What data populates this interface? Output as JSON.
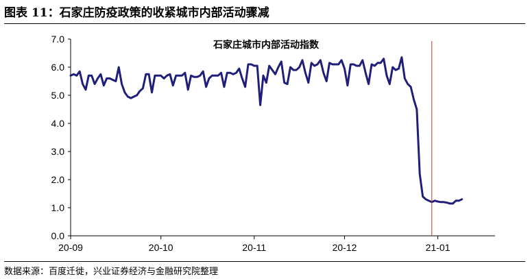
{
  "figure": {
    "title": "图表 11：石家庄防疫政策的收紧城市内部活动骤减",
    "source": "数据来源：百度迁徙，兴业证券经济与金融研究院整理"
  },
  "chart_data": {
    "type": "line",
    "title": "石家庄城市内部活动指数",
    "xlabel": "",
    "ylabel": "",
    "ylim": [
      0,
      7
    ],
    "yticks": [
      "0.0",
      "1.0",
      "2.0",
      "3.0",
      "4.0",
      "5.0",
      "6.0",
      "7.0"
    ],
    "xticks": [
      {
        "label": "20-09",
        "date": "2020-09-01"
      },
      {
        "label": "20-10",
        "date": "2020-10-01"
      },
      {
        "label": "20-11",
        "date": "2020-11-01"
      },
      {
        "label": "20-12",
        "date": "2020-12-01"
      },
      {
        "label": "21-01",
        "date": "2021-01-01"
      }
    ],
    "x_range": [
      "2020-09-01",
      "2021-01-20"
    ],
    "line_color": "#1f1f7a",
    "vline": {
      "date": "2020-12-30",
      "color": "#c0392b"
    },
    "grid": false,
    "series": [
      {
        "values": [
          [
            "2020-09-01",
            5.7
          ],
          [
            "2020-09-02",
            5.75
          ],
          [
            "2020-09-03",
            5.7
          ],
          [
            "2020-09-04",
            5.85
          ],
          [
            "2020-09-05",
            5.4
          ],
          [
            "2020-09-06",
            5.2
          ],
          [
            "2020-09-07",
            5.7
          ],
          [
            "2020-09-08",
            5.7
          ],
          [
            "2020-09-09",
            5.4
          ],
          [
            "2020-09-10",
            5.6
          ],
          [
            "2020-09-11",
            5.75
          ],
          [
            "2020-09-12",
            5.35
          ],
          [
            "2020-09-13",
            5.6
          ],
          [
            "2020-09-14",
            5.6
          ],
          [
            "2020-09-15",
            5.55
          ],
          [
            "2020-09-16",
            5.5
          ],
          [
            "2020-09-17",
            6.0
          ],
          [
            "2020-09-18",
            5.4
          ],
          [
            "2020-09-19",
            5.1
          ],
          [
            "2020-09-20",
            4.95
          ],
          [
            "2020-09-21",
            4.9
          ],
          [
            "2020-09-22",
            4.95
          ],
          [
            "2020-09-23",
            5.0
          ],
          [
            "2020-09-24",
            5.15
          ],
          [
            "2020-09-25",
            5.25
          ],
          [
            "2020-09-26",
            5.75
          ],
          [
            "2020-09-27",
            5.75
          ],
          [
            "2020-09-28",
            5.1
          ],
          [
            "2020-09-29",
            5.7
          ],
          [
            "2020-09-30",
            5.7
          ],
          [
            "2020-10-01",
            5.7
          ],
          [
            "2020-10-02",
            5.6
          ],
          [
            "2020-10-03",
            5.7
          ],
          [
            "2020-10-04",
            5.75
          ],
          [
            "2020-10-05",
            5.35
          ],
          [
            "2020-10-06",
            5.7
          ],
          [
            "2020-10-07",
            5.7
          ],
          [
            "2020-10-08",
            5.7
          ],
          [
            "2020-10-09",
            5.8
          ],
          [
            "2020-10-10",
            5.2
          ],
          [
            "2020-10-11",
            5.7
          ],
          [
            "2020-10-12",
            5.65
          ],
          [
            "2020-10-13",
            5.65
          ],
          [
            "2020-10-14",
            5.7
          ],
          [
            "2020-10-15",
            5.85
          ],
          [
            "2020-10-16",
            5.3
          ],
          [
            "2020-10-17",
            5.6
          ],
          [
            "2020-10-18",
            5.7
          ],
          [
            "2020-10-19",
            5.7
          ],
          [
            "2020-10-20",
            5.7
          ],
          [
            "2020-10-21",
            5.8
          ],
          [
            "2020-10-22",
            5.3
          ],
          [
            "2020-10-23",
            5.8
          ],
          [
            "2020-10-24",
            5.8
          ],
          [
            "2020-10-25",
            5.75
          ],
          [
            "2020-10-26",
            5.8
          ],
          [
            "2020-10-27",
            5.95
          ],
          [
            "2020-10-28",
            5.6
          ],
          [
            "2020-10-29",
            5.3
          ],
          [
            "2020-10-30",
            6.1
          ],
          [
            "2020-10-31",
            6.1
          ],
          [
            "2020-11-01",
            6.05
          ],
          [
            "2020-11-02",
            6.05
          ],
          [
            "2020-11-03",
            4.65
          ],
          [
            "2020-11-04",
            5.7
          ],
          [
            "2020-11-05",
            5.45
          ],
          [
            "2020-11-06",
            6.05
          ],
          [
            "2020-11-07",
            5.9
          ],
          [
            "2020-11-08",
            5.75
          ],
          [
            "2020-11-09",
            6.0
          ],
          [
            "2020-11-10",
            6.2
          ],
          [
            "2020-11-11",
            5.45
          ],
          [
            "2020-11-12",
            5.4
          ],
          [
            "2020-11-13",
            6.0
          ],
          [
            "2020-11-14",
            5.9
          ],
          [
            "2020-11-15",
            5.9
          ],
          [
            "2020-11-16",
            6.0
          ],
          [
            "2020-11-17",
            6.25
          ],
          [
            "2020-11-18",
            5.8
          ],
          [
            "2020-11-19",
            5.45
          ],
          [
            "2020-11-20",
            6.15
          ],
          [
            "2020-11-21",
            6.05
          ],
          [
            "2020-11-22",
            6.1
          ],
          [
            "2020-11-23",
            6.25
          ],
          [
            "2020-11-24",
            5.8
          ],
          [
            "2020-11-25",
            5.5
          ],
          [
            "2020-11-26",
            6.15
          ],
          [
            "2020-11-27",
            6.1
          ],
          [
            "2020-11-28",
            6.1
          ],
          [
            "2020-11-29",
            6.1
          ],
          [
            "2020-11-30",
            6.25
          ],
          [
            "2020-12-01",
            5.95
          ],
          [
            "2020-12-02",
            5.35
          ],
          [
            "2020-12-03",
            6.1
          ],
          [
            "2020-12-04",
            6.1
          ],
          [
            "2020-12-05",
            6.05
          ],
          [
            "2020-12-06",
            6.05
          ],
          [
            "2020-12-07",
            6.25
          ],
          [
            "2020-12-08",
            5.8
          ],
          [
            "2020-12-09",
            5.4
          ],
          [
            "2020-12-10",
            6.1
          ],
          [
            "2020-12-11",
            6.05
          ],
          [
            "2020-12-12",
            6.15
          ],
          [
            "2020-12-13",
            6.15
          ],
          [
            "2020-12-14",
            6.3
          ],
          [
            "2020-12-15",
            5.7
          ],
          [
            "2020-12-16",
            5.4
          ],
          [
            "2020-12-17",
            6.0
          ],
          [
            "2020-12-18",
            5.9
          ],
          [
            "2020-12-19",
            5.95
          ],
          [
            "2020-12-20",
            6.35
          ],
          [
            "2020-12-21",
            5.6
          ],
          [
            "2020-12-22",
            5.4
          ],
          [
            "2020-12-23",
            5.3
          ],
          [
            "2020-12-24",
            4.85
          ],
          [
            "2020-12-25",
            4.5
          ],
          [
            "2020-12-26",
            2.2
          ],
          [
            "2020-12-27",
            1.4
          ],
          [
            "2020-12-28",
            1.3
          ],
          [
            "2020-12-29",
            1.25
          ],
          [
            "2020-12-30",
            1.2
          ],
          [
            "2020-12-31",
            1.25
          ],
          [
            "2021-01-01",
            1.22
          ],
          [
            "2021-01-02",
            1.2
          ],
          [
            "2021-01-03",
            1.2
          ],
          [
            "2021-01-04",
            1.18
          ],
          [
            "2021-01-05",
            1.15
          ],
          [
            "2021-01-06",
            1.15
          ],
          [
            "2021-01-07",
            1.25
          ],
          [
            "2021-01-08",
            1.25
          ],
          [
            "2021-01-09",
            1.3
          ]
        ]
      }
    ]
  }
}
